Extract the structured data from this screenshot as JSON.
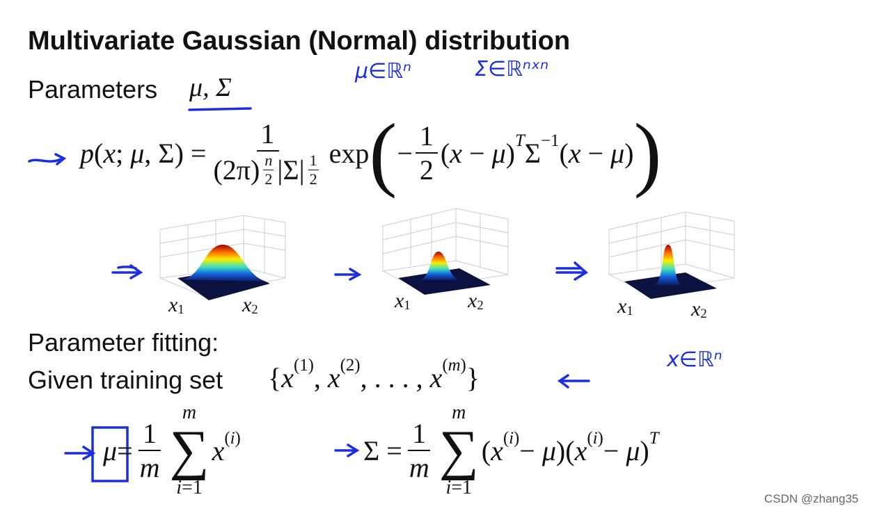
{
  "title": "Multivariate Gaussian (Normal) distribution",
  "parameters": {
    "label": "Parameters",
    "symbols": "μ, Σ"
  },
  "annotations": [
    "μ∈ℝⁿ",
    "Σ∈ℝⁿˣⁿ",
    "x∈ℝⁿ"
  ],
  "density": {
    "lhs": [
      {
        "text": "p(x; μ, Σ) = "
      },
      {
        "frac": {
          "num": [
            {
              "text": "1"
            }
          ],
          "den": [
            {
              "text": "(2π)"
            },
            {
              "frac": {
                "num": [
                  {
                    "text": "n"
                  }
                ],
                "den": [
                  {
                    "text": "2"
                  }
                ]
              }
            },
            {
              "text": " |Σ|"
            },
            {
              "frac": {
                "num": [
                  {
                    "text": "1"
                  }
                ],
                "den": [
                  {
                    "text": "2"
                  }
                ]
              }
            }
          ]
        }
      },
      {
        "text": " exp "
      }
    ],
    "exp_open": "(",
    "exp_body": [
      {
        "text": "−"
      },
      {
        "frac": {
          "num": [
            {
              "text": "1"
            }
          ],
          "den": [
            {
              "text": "2"
            }
          ]
        }
      },
      {
        "text": "(x − μ)",
        "sup": "T"
      },
      {
        "text": "Σ",
        "sup": "−1"
      },
      {
        "text": "(x − μ)"
      }
    ],
    "exp_close": ")"
  },
  "plots": [
    {
      "x1": [
        {
          "text": "x",
          "sub": "1"
        }
      ],
      "x2": [
        {
          "text": "x",
          "sub": "2"
        }
      ]
    },
    {
      "x1": [
        {
          "text": "x",
          "sub": "1"
        }
      ],
      "x2": [
        {
          "text": "x",
          "sub": "2"
        }
      ]
    },
    {
      "x1": [
        {
          "text": "x",
          "sub": "1"
        }
      ],
      "x2": [
        {
          "text": "x",
          "sub": "2"
        }
      ]
    }
  ],
  "fitting": {
    "heading": "Parameter fitting:",
    "given": "Given training set",
    "set": [
      {
        "text": "{x",
        "sup": "(1)"
      },
      {
        "text": ", x",
        "sup": "(2)"
      },
      {
        "text": ", . . . , x",
        "sup": "(m)"
      },
      {
        "text": "}"
      }
    ],
    "mu": [
      {
        "text": "μ"
      },
      {
        "text": " = "
      },
      {
        "frac": {
          "num": [
            {
              "text": "1"
            }
          ],
          "den": [
            {
              "text": "m"
            }
          ]
        }
      },
      {
        "sum": {
          "symbol": "∑",
          "upper": "m",
          "lower": "i=1"
        }
      },
      {
        "text": "x",
        "sup": "(i)"
      }
    ],
    "sigma": [
      {
        "text": "Σ = "
      },
      {
        "frac": {
          "num": [
            {
              "text": "1"
            }
          ],
          "den": [
            {
              "text": "m"
            }
          ]
        }
      },
      {
        "sum": {
          "symbol": "∑",
          "upper": "m",
          "lower": "i=1"
        }
      },
      {
        "text": "(x",
        "sup": "(i)"
      },
      {
        "text": " − μ)(x",
        "sup": "(i)"
      },
      {
        "text": " − μ)",
        "sup": "T"
      }
    ]
  },
  "watermark": "CSDN @zhang35"
}
